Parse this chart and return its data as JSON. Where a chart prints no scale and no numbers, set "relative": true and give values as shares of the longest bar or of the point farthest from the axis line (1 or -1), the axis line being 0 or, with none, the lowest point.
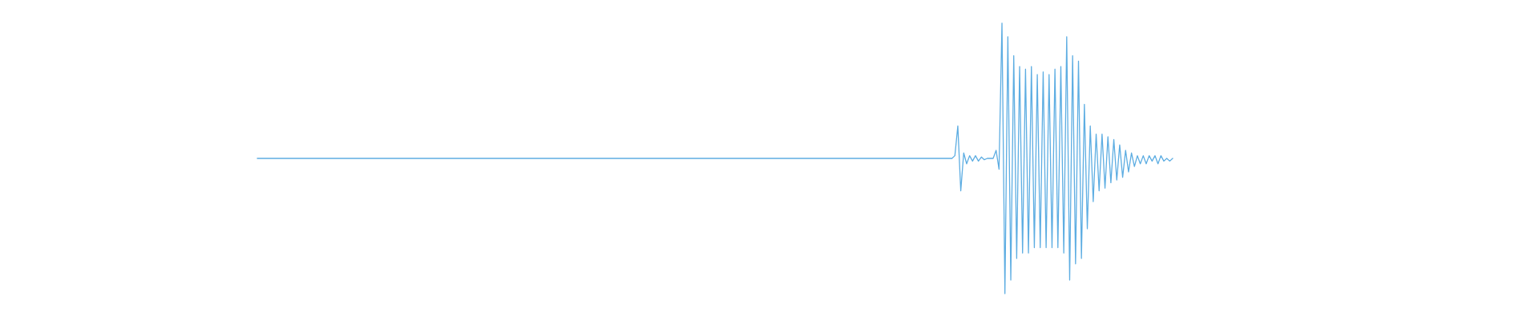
{
  "chart_data": {
    "type": "line",
    "relative": true,
    "categories": [
      null,
      null,
      null,
      null,
      null,
      null,
      null,
      null,
      null,
      null,
      null,
      null,
      null,
      null,
      null,
      null,
      null,
      null,
      null,
      null,
      null,
      null,
      null,
      null,
      null,
      null,
      null,
      null,
      null,
      null,
      null,
      null,
      null,
      null,
      null,
      null,
      null,
      null,
      null,
      null,
      null,
      null,
      null,
      null,
      null,
      null,
      null,
      null,
      null,
      null,
      null,
      null,
      null,
      null,
      null,
      null,
      null,
      null,
      null,
      null,
      null,
      null,
      null,
      null,
      null,
      null,
      null,
      null,
      null,
      null,
      null,
      null,
      null,
      null,
      null,
      null,
      null,
      null,
      null,
      null,
      null,
      null,
      null,
      null,
      null,
      null,
      null,
      null,
      null,
      null,
      null,
      null,
      null,
      null,
      null,
      null,
      null,
      null,
      null,
      null,
      null,
      null,
      null,
      null,
      null,
      null,
      null,
      null,
      null,
      null,
      null,
      null,
      null,
      null,
      null,
      null,
      null,
      null,
      null,
      null,
      null,
      null,
      null,
      null,
      null,
      null,
      null,
      null,
      null,
      null,
      null,
      null,
      null,
      null,
      null,
      null,
      null,
      null,
      null,
      null,
      null,
      null,
      null,
      null,
      null,
      null,
      null,
      null,
      null,
      null,
      null,
      null,
      null,
      null,
      null,
      null,
      null,
      null,
      null,
      null,
      null,
      null,
      null,
      null,
      null,
      null,
      null,
      null,
      null,
      null,
      null,
      null,
      null,
      null,
      null,
      null,
      null,
      null,
      null,
      null,
      null,
      null,
      null,
      null,
      null,
      null,
      null,
      null,
      null,
      null,
      null,
      null,
      null,
      null,
      null,
      null,
      null,
      null,
      null,
      null,
      null,
      null,
      null,
      null,
      null,
      null,
      null,
      null,
      null,
      null,
      null,
      null,
      null,
      null,
      null,
      null,
      null,
      null,
      null,
      null,
      null,
      null,
      null,
      null,
      null,
      null,
      null,
      null,
      null,
      null,
      null,
      null,
      null,
      null,
      null,
      null,
      null,
      null,
      null,
      null,
      null,
      null,
      null,
      null,
      null,
      null,
      null,
      null,
      null,
      null,
      null,
      null,
      null,
      null,
      null,
      null,
      null,
      null,
      null,
      null,
      null,
      null,
      null,
      null,
      null,
      null,
      null,
      null,
      null,
      null,
      null,
      null,
      null,
      null,
      null,
      null,
      null,
      null,
      null,
      null,
      null,
      null,
      null,
      null,
      null,
      null,
      null,
      null,
      null,
      null,
      null,
      null,
      null,
      null,
      null,
      null,
      null,
      null,
      null,
      null,
      null,
      null,
      null,
      null,
      null,
      null,
      null,
      null,
      null,
      null,
      null,
      null
    ],
    "series": [
      {
        "color": "#5dade2",
        "values": [
          0.5,
          0.5,
          0.5,
          0.5,
          0.5,
          0.5,
          0.5,
          0.5,
          0.5,
          0.5,
          0.5,
          0.5,
          0.5,
          0.5,
          0.5,
          0.5,
          0.5,
          0.5,
          0.5,
          0.5,
          0.5,
          0.5,
          0.5,
          0.5,
          0.5,
          0.5,
          0.5,
          0.5,
          0.5,
          0.5,
          0.5,
          0.5,
          0.5,
          0.5,
          0.5,
          0.5,
          0.5,
          0.5,
          0.5,
          0.5,
          0.5,
          0.5,
          0.5,
          0.5,
          0.5,
          0.5,
          0.5,
          0.5,
          0.5,
          0.5,
          0.5,
          0.5,
          0.5,
          0.5,
          0.5,
          0.5,
          0.5,
          0.5,
          0.5,
          0.5,
          0.5,
          0.5,
          0.5,
          0.5,
          0.5,
          0.5,
          0.5,
          0.5,
          0.5,
          0.5,
          0.5,
          0.5,
          0.5,
          0.5,
          0.5,
          0.5,
          0.5,
          0.5,
          0.5,
          0.5,
          0.5,
          0.5,
          0.5,
          0.5,
          0.5,
          0.5,
          0.5,
          0.5,
          0.5,
          0.5,
          0.5,
          0.5,
          0.5,
          0.5,
          0.5,
          0.5,
          0.5,
          0.5,
          0.5,
          0.5,
          0.5,
          0.5,
          0.5,
          0.5,
          0.5,
          0.5,
          0.5,
          0.5,
          0.5,
          0.5,
          0.5,
          0.5,
          0.5,
          0.5,
          0.5,
          0.5,
          0.5,
          0.5,
          0.5,
          0.5,
          0.5,
          0.5,
          0.5,
          0.5,
          0.5,
          0.5,
          0.5,
          0.5,
          0.5,
          0.5,
          0.5,
          0.5,
          0.5,
          0.5,
          0.5,
          0.5,
          0.5,
          0.5,
          0.5,
          0.5,
          0.5,
          0.5,
          0.5,
          0.5,
          0.5,
          0.5,
          0.5,
          0.5,
          0.5,
          0.5,
          0.5,
          0.5,
          0.5,
          0.5,
          0.5,
          0.5,
          0.5,
          0.5,
          0.5,
          0.5,
          0.5,
          0.5,
          0.5,
          0.5,
          0.5,
          0.5,
          0.5,
          0.5,
          0.5,
          0.5,
          0.5,
          0.5,
          0.5,
          0.5,
          0.5,
          0.5,
          0.5,
          0.5,
          0.5,
          0.5,
          0.5,
          0.5,
          0.5,
          0.5,
          0.5,
          0.5,
          0.5,
          0.5,
          0.5,
          0.5,
          0.5,
          0.5,
          0.5,
          0.5,
          0.5,
          0.5,
          0.5,
          0.5,
          0.5,
          0.5,
          0.5,
          0.5,
          0.5,
          0.5,
          0.5,
          0.5,
          0.5,
          0.5,
          0.5,
          0.5,
          0.5,
          0.5,
          0.5,
          0.5,
          0.5,
          0.5,
          0.5,
          0.5,
          0.5,
          0.5,
          0.5,
          0.5,
          0.5,
          0.5,
          0.5,
          0.5,
          0.5,
          0.5,
          0.5,
          0.5,
          0.5,
          0.5,
          0.5,
          0.5,
          0.5,
          0.5,
          0.5,
          0.51,
          0.62,
          0.38,
          0.52,
          0.48,
          0.51,
          0.49,
          0.51,
          0.49,
          0.505,
          0.495,
          0.5,
          0.5,
          0.5,
          0.53,
          0.46,
          1,
          0,
          0.95,
          0.05,
          0.88,
          0.13,
          0.84,
          0.15,
          0.83,
          0.15,
          0.84,
          0.17,
          0.81,
          0.17,
          0.82,
          0.17,
          0.81,
          0.17,
          0.83,
          0.17,
          0.84,
          0.15,
          0.95,
          0.05,
          0.88,
          0.11,
          0.86,
          0.13,
          0.7,
          0.24,
          0.62,
          0.34,
          0.59,
          0.38,
          0.59,
          0.39,
          0.58,
          0.41,
          0.57,
          0.42,
          0.55,
          0.43,
          0.53,
          0.45,
          0.52,
          0.47,
          0.51,
          0.48,
          0.51,
          0.48,
          0.51,
          0.49,
          0.51,
          0.48,
          0.51,
          0.49,
          0.5,
          0.49,
          0.5
        ]
      }
    ]
  }
}
